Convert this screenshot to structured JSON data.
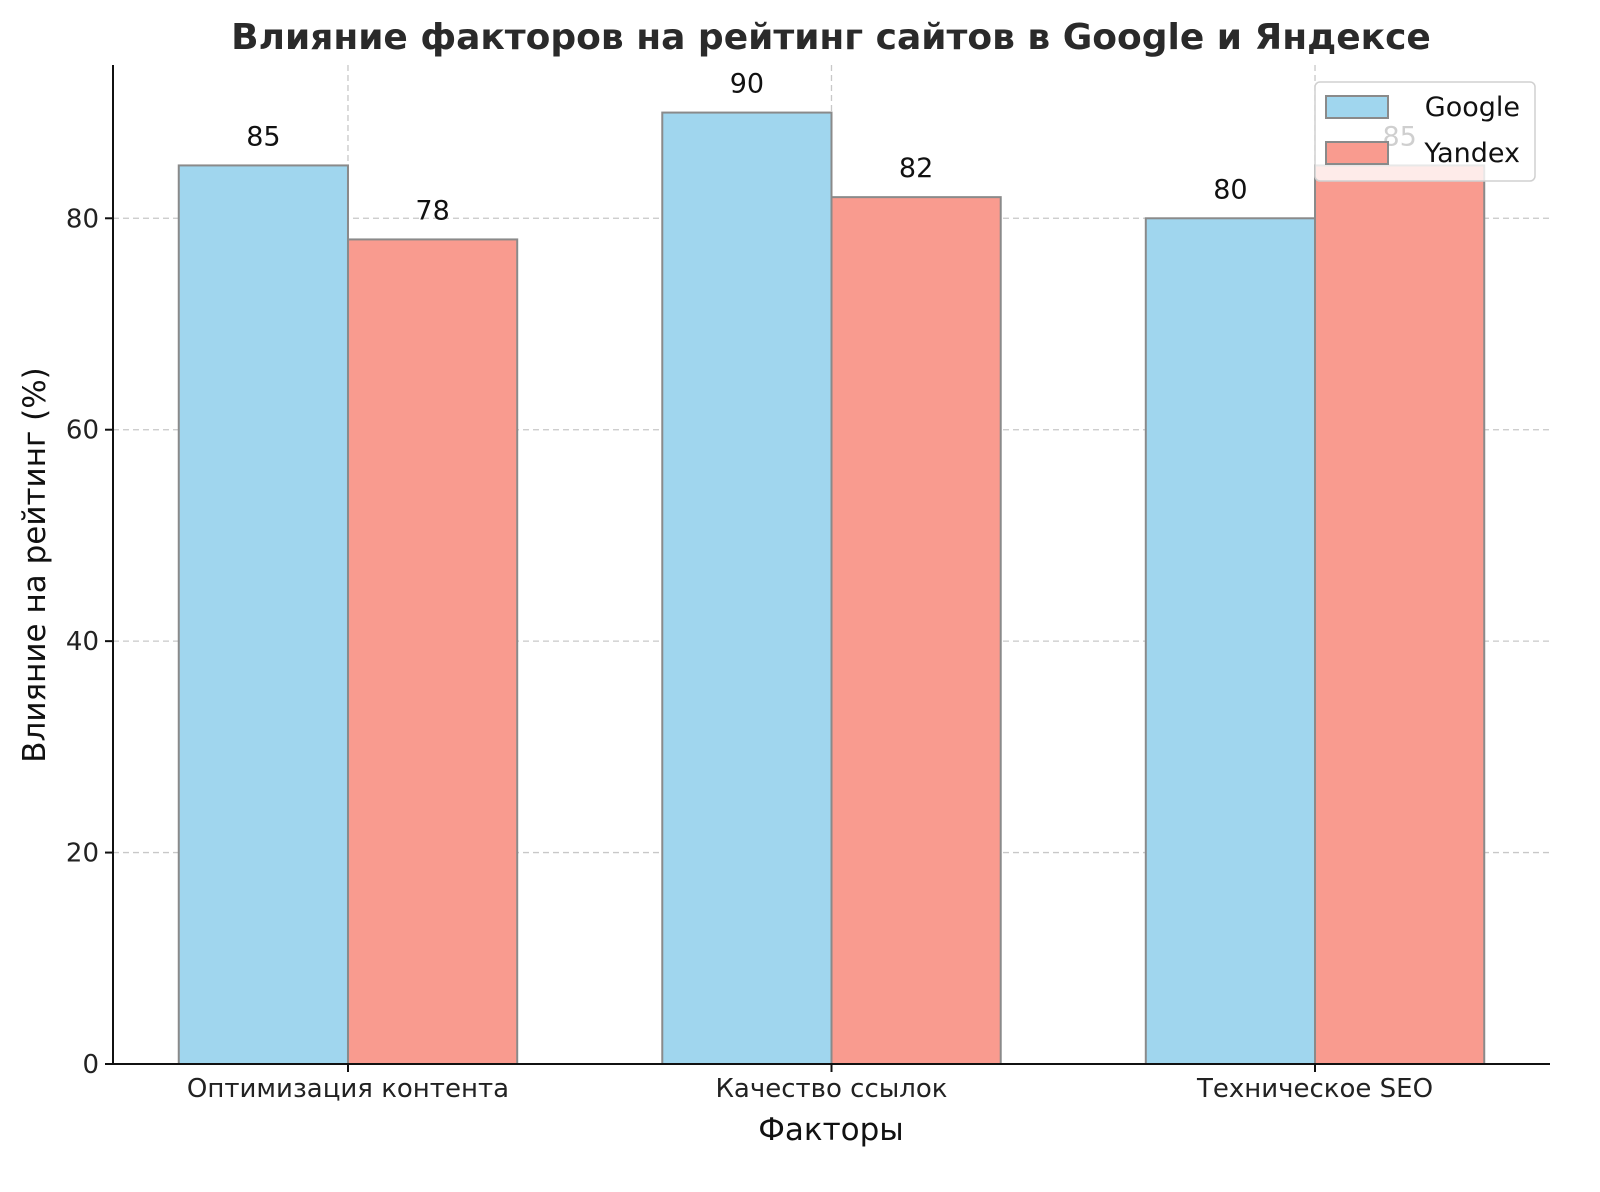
{
  "chart_data": {
    "type": "bar",
    "title": "Влияние факторов на рейтинг сайтов в Google и Яндексе",
    "xlabel": "Факторы",
    "ylabel": "Влияние на рейтинг (%)",
    "categories": [
      "Оптимизация контента",
      "Качество ссылок",
      "Техническое SEO"
    ],
    "series": [
      {
        "name": "Google",
        "values": [
          85,
          90,
          80
        ],
        "color": "#a0d6ee"
      },
      {
        "name": "Yandex",
        "values": [
          78,
          82,
          85
        ],
        "color": "#f99b8f"
      }
    ],
    "ylim": [
      0,
      94.5
    ],
    "yticks": [
      0,
      20,
      40,
      60,
      80
    ],
    "grid": true,
    "legend": "top-right",
    "data_labels": true
  }
}
